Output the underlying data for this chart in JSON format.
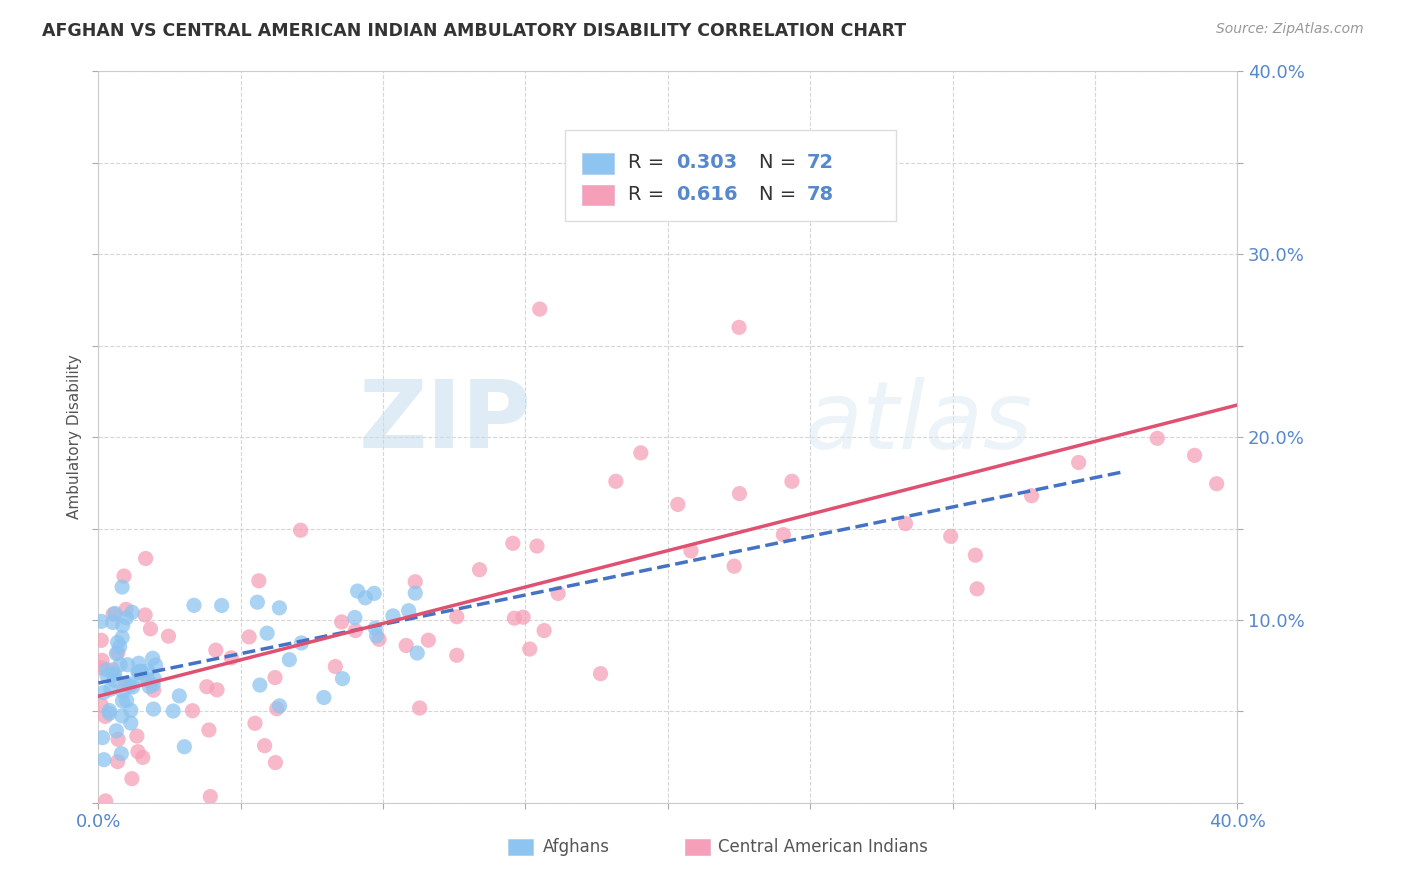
{
  "title": "AFGHAN VS CENTRAL AMERICAN INDIAN AMBULATORY DISABILITY CORRELATION CHART",
  "source": "Source: ZipAtlas.com",
  "ylabel": "Ambulatory Disability",
  "xlim": [
    0.0,
    0.4
  ],
  "ylim": [
    0.0,
    0.4
  ],
  "legend_r1": "R = 0.303",
  "legend_n1": "N = 72",
  "legend_r2": "R = 0.616",
  "legend_n2": "N = 78",
  "afghan_color": "#8dc4f0",
  "central_american_color": "#f5a0b8",
  "afghan_line_color": "#4472c4",
  "central_american_line_color": "#e05070",
  "background_color": "#ffffff",
  "grid_color": "#cccccc",
  "watermark_zip": "ZIP",
  "watermark_atlas": "atlas",
  "tick_color": "#5588cc",
  "title_color": "#333333",
  "source_color": "#999999"
}
